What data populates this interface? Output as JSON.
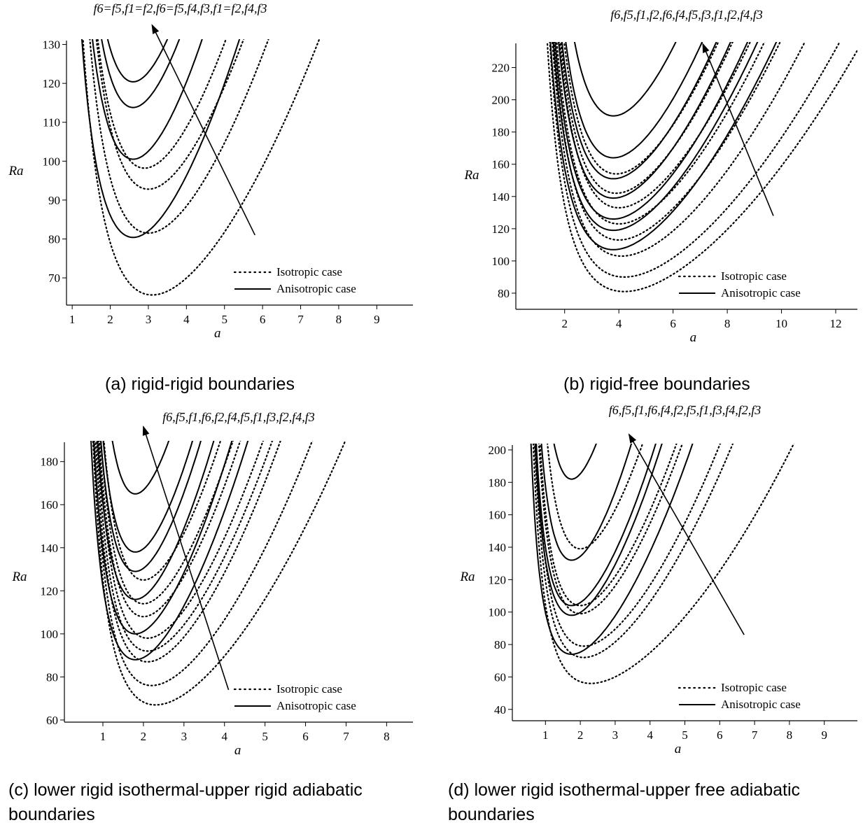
{
  "legend": {
    "iso_label": "Isotropic case",
    "aniso_label": "Anisotropic case"
  },
  "chart_data": [
    {
      "type": "line",
      "title": "",
      "caption": "(a) rigid-rigid boundaries",
      "xlabel": "a",
      "ylabel": "Ra",
      "arrow_label": "f6=f5,f1=f2,f6=f5,f4,f3,f1=f2,f4,f3",
      "xlim": [
        0.85,
        9.95
      ],
      "ylim": [
        63,
        131
      ],
      "xticks": [
        1,
        2,
        3,
        4,
        5,
        6,
        7,
        8,
        9
      ],
      "yticks": [
        70,
        80,
        90,
        100,
        110,
        120,
        130
      ],
      "grid": false,
      "legend_position": "bottom-right",
      "arrow": {
        "from": [
          5.8,
          81
        ],
        "to": [
          3.1,
          131
        ]
      },
      "series": [
        {
          "style": "dotted",
          "min_x": 3.1,
          "min_y": 65.6
        },
        {
          "style": "dotted",
          "min_x": 3.0,
          "min_y": 81.5
        },
        {
          "style": "dotted",
          "min_x": 3.0,
          "min_y": 92.8
        },
        {
          "style": "dotted",
          "min_x": 2.9,
          "min_y": 98.2
        },
        {
          "style": "solid",
          "min_x": 2.6,
          "min_y": 80.4
        },
        {
          "style": "solid",
          "min_x": 2.6,
          "min_y": 100.5
        },
        {
          "style": "solid",
          "min_x": 2.6,
          "min_y": 113.8
        },
        {
          "style": "solid",
          "min_x": 2.6,
          "min_y": 120.4
        }
      ]
    },
    {
      "type": "line",
      "title": "",
      "caption": "(b) rigid-free boundaries",
      "xlabel": "a",
      "ylabel": "Ra",
      "arrow_label": "f6,f5,f1,f2,f6,f4,f5,f3,f1,f2,f4,f3",
      "xlim": [
        0.2,
        12.8
      ],
      "ylim": [
        70,
        235
      ],
      "xticks": [
        2,
        4,
        6,
        8,
        10,
        12
      ],
      "yticks": [
        80,
        100,
        120,
        140,
        160,
        180,
        200,
        220
      ],
      "grid": false,
      "legend_position": "bottom-right",
      "arrow": {
        "from": [
          9.7,
          128
        ],
        "to": [
          7.1,
          225
        ]
      },
      "series": [
        {
          "style": "dotted",
          "min_x": 4.2,
          "min_y": 81
        },
        {
          "style": "dotted",
          "min_x": 4.2,
          "min_y": 90
        },
        {
          "style": "dotted",
          "min_x": 4.1,
          "min_y": 103
        },
        {
          "style": "dotted",
          "min_x": 4.0,
          "min_y": 113
        },
        {
          "style": "dotted",
          "min_x": 4.0,
          "min_y": 123
        },
        {
          "style": "dotted",
          "min_x": 4.0,
          "min_y": 133
        },
        {
          "style": "dotted",
          "min_x": 3.9,
          "min_y": 142
        },
        {
          "style": "dotted",
          "min_x": 3.9,
          "min_y": 154
        },
        {
          "style": "solid",
          "min_x": 3.8,
          "min_y": 107
        },
        {
          "style": "solid",
          "min_x": 3.8,
          "min_y": 119
        },
        {
          "style": "solid",
          "min_x": 3.8,
          "min_y": 126
        },
        {
          "style": "solid",
          "min_x": 3.8,
          "min_y": 139
        },
        {
          "style": "solid",
          "min_x": 3.8,
          "min_y": 151
        },
        {
          "style": "solid",
          "min_x": 3.8,
          "min_y": 164
        },
        {
          "style": "solid",
          "min_x": 3.8,
          "min_y": 190
        }
      ]
    },
    {
      "type": "line",
      "title": "",
      "caption": "(c) lower rigid isothermal-upper rigid adiabatic boundaries",
      "xlabel": "a",
      "ylabel": "Ra",
      "arrow_label": "f6,f5,f1,f6,f2,f4,f5,f1,f3,f2,f4,f3",
      "xlim": [
        0.05,
        8.65
      ],
      "ylim": [
        59,
        189
      ],
      "xticks": [
        1,
        2,
        3,
        4,
        5,
        6,
        7,
        8
      ],
      "yticks": [
        60,
        80,
        100,
        120,
        140,
        160,
        180
      ],
      "grid": false,
      "legend_position": "bottom-right",
      "arrow": {
        "from": [
          4.1,
          74
        ],
        "to": [
          2.0,
          189
        ]
      },
      "series": [
        {
          "style": "dotted",
          "min_x": 2.3,
          "min_y": 67
        },
        {
          "style": "dotted",
          "min_x": 2.2,
          "min_y": 76
        },
        {
          "style": "dotted",
          "min_x": 2.1,
          "min_y": 87
        },
        {
          "style": "dotted",
          "min_x": 2.1,
          "min_y": 92
        },
        {
          "style": "dotted",
          "min_x": 2.1,
          "min_y": 98
        },
        {
          "style": "dotted",
          "min_x": 2.0,
          "min_y": 108
        },
        {
          "style": "dotted",
          "min_x": 2.0,
          "min_y": 114
        },
        {
          "style": "dotted",
          "min_x": 2.0,
          "min_y": 125
        },
        {
          "style": "solid",
          "min_x": 1.8,
          "min_y": 88
        },
        {
          "style": "solid",
          "min_x": 1.8,
          "min_y": 100
        },
        {
          "style": "solid",
          "min_x": 1.8,
          "min_y": 116
        },
        {
          "style": "solid",
          "min_x": 1.8,
          "min_y": 129
        },
        {
          "style": "solid",
          "min_x": 1.8,
          "min_y": 138
        },
        {
          "style": "solid",
          "min_x": 1.8,
          "min_y": 165
        }
      ]
    },
    {
      "type": "line",
      "title": "",
      "caption": "(d) lower rigid isothermal-upper free adiabatic boundaries",
      "xlabel": "a",
      "ylabel": "Ra",
      "arrow_label": "f6,f5,f1,f6,f4,f2,f5,f1,f3,f4,f2,f3",
      "xlim": [
        0.05,
        9.95
      ],
      "ylim": [
        33,
        203
      ],
      "xticks": [
        1,
        2,
        3,
        4,
        5,
        6,
        7,
        8,
        9
      ],
      "yticks": [
        40,
        60,
        80,
        100,
        120,
        140,
        160,
        180,
        200
      ],
      "grid": false,
      "legend_position": "bottom-right",
      "arrow": {
        "from": [
          6.7,
          86
        ],
        "to": [
          3.4,
          200
        ]
      },
      "series": [
        {
          "style": "dotted",
          "min_x": 2.3,
          "min_y": 56
        },
        {
          "style": "dotted",
          "min_x": 2.1,
          "min_y": 72
        },
        {
          "style": "dotted",
          "min_x": 2.1,
          "min_y": 79
        },
        {
          "style": "dotted",
          "min_x": 2.0,
          "min_y": 99
        },
        {
          "style": "dotted",
          "min_x": 2.0,
          "min_y": 104
        },
        {
          "style": "dotted",
          "min_x": 2.0,
          "min_y": 139
        },
        {
          "style": "solid",
          "min_x": 1.75,
          "min_y": 74
        },
        {
          "style": "solid",
          "min_x": 1.75,
          "min_y": 98
        },
        {
          "style": "solid",
          "min_x": 1.75,
          "min_y": 104
        },
        {
          "style": "solid",
          "min_x": 1.75,
          "min_y": 132
        },
        {
          "style": "solid",
          "min_x": 1.75,
          "min_y": 182
        }
      ]
    }
  ]
}
